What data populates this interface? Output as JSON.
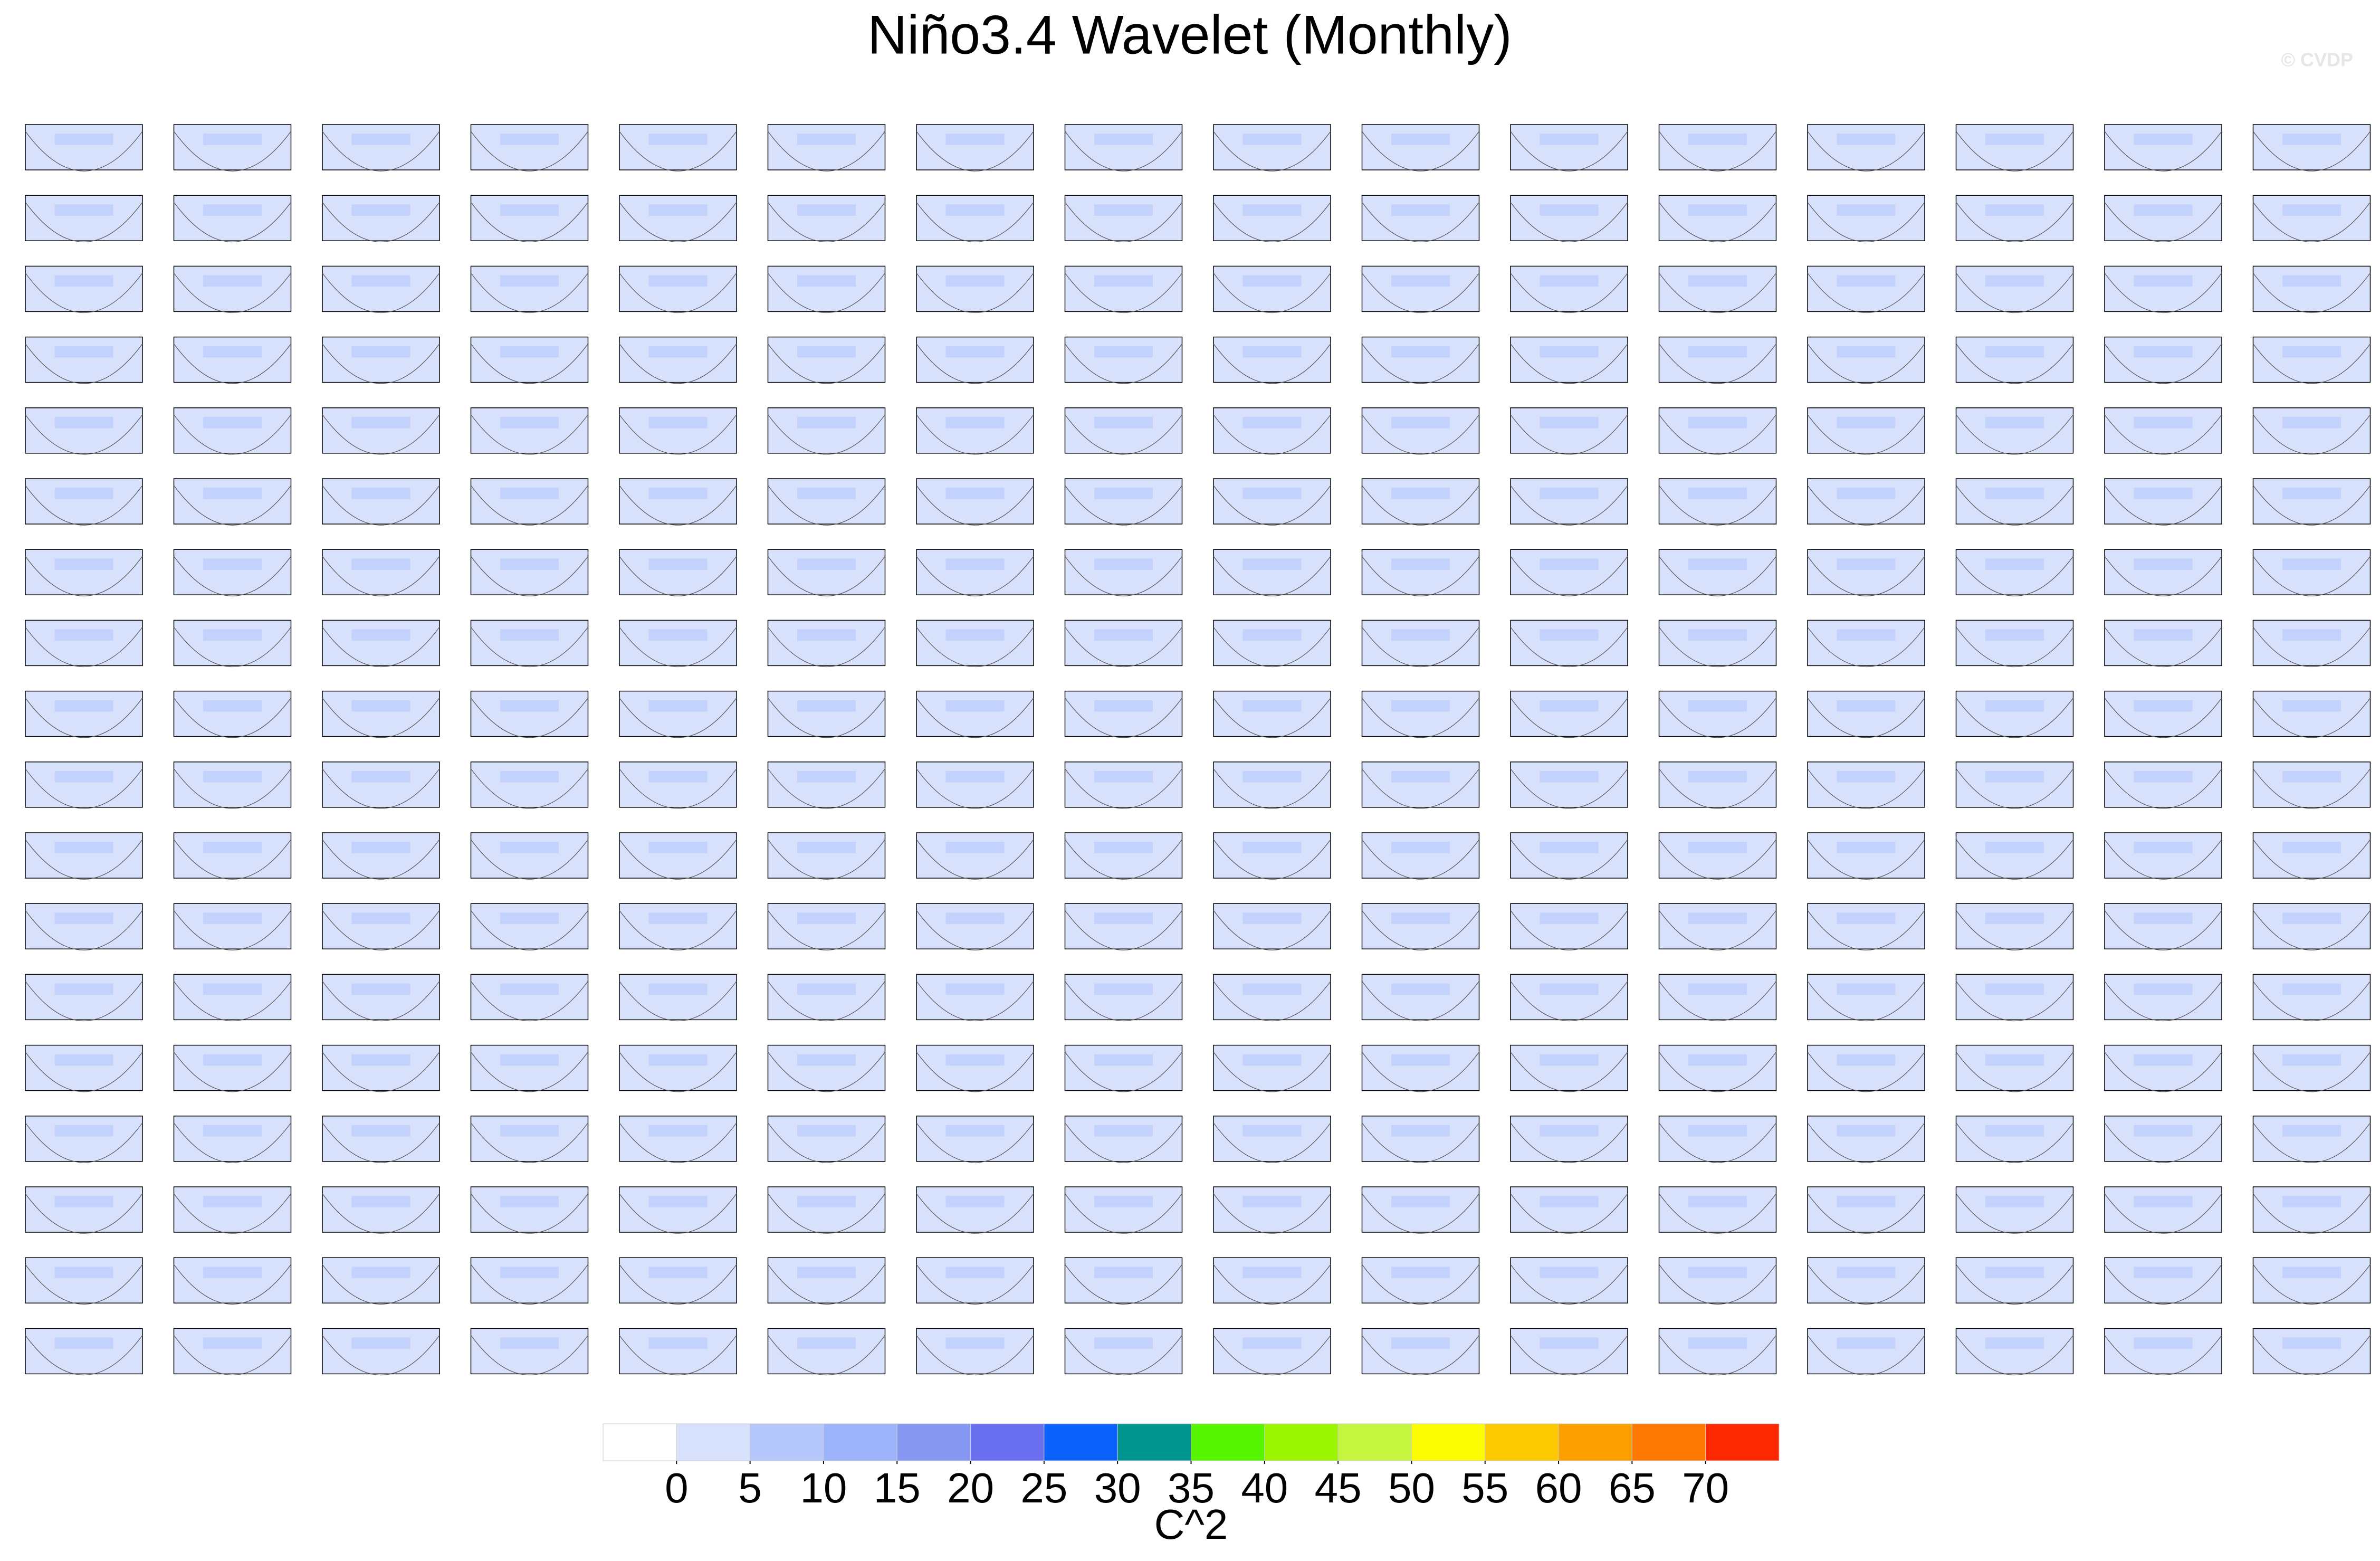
{
  "chart_data": {
    "type": "heatmap",
    "title": "Niño3.4 Wavelet (Monthly)",
    "watermark": "© CVDP",
    "colorbar": {
      "levels": [
        0,
        5,
        10,
        15,
        20,
        25,
        30,
        35,
        40,
        45,
        50,
        55,
        60,
        65,
        70
      ],
      "colors": [
        "#ffffff",
        "#d7e1fc",
        "#b6c8fb",
        "#9db4fa",
        "#8798f3",
        "#6a6ff0",
        "#0a62fb",
        "#00968f",
        "#57f500",
        "#9cf500",
        "#c6f53f",
        "#fcfc00",
        "#fcc800",
        "#fca000",
        "#fc7800",
        "#fc2800"
      ],
      "label": "C^2"
    }
  }
}
